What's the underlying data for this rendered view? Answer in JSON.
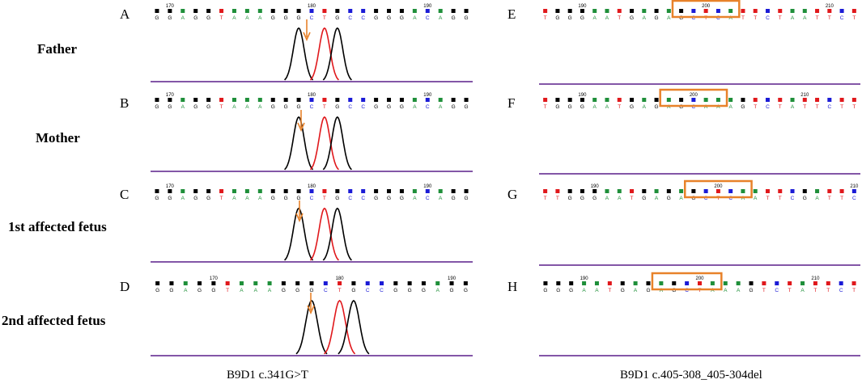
{
  "left_column": {
    "caption": "B9D1 c.341G>T",
    "panels": [
      {
        "letter": "A",
        "row_label": "Father",
        "seq": "GGAGGTAAAGGGCTGCCGGGACAGG",
        "pos_labels": [
          {
            "i": 1,
            "t": "170"
          },
          {
            "i": 12,
            "t": "180"
          },
          {
            "i": 21,
            "t": "190"
          }
        ]
      },
      {
        "letter": "B",
        "row_label": "Mother",
        "seq": "GGAGGTAAAGGGCTGCCGGGACAGG",
        "pos_labels": [
          {
            "i": 1,
            "t": "170"
          },
          {
            "i": 12,
            "t": "180"
          },
          {
            "i": 21,
            "t": "190"
          }
        ]
      },
      {
        "letter": "C",
        "row_label": "1st affected fetus",
        "seq": "GGAGGTAAAGGGCTGCCGGGACAGG",
        "pos_labels": [
          {
            "i": 1,
            "t": "170"
          },
          {
            "i": 12,
            "t": "180"
          },
          {
            "i": 21,
            "t": "190"
          }
        ]
      },
      {
        "letter": "D",
        "row_label": "2nd affected fetus",
        "seq": "GGAGGTAAAGGGCTGCCGGGAGG",
        "pos_labels": [
          {
            "i": 4,
            "t": "170"
          },
          {
            "i": 13,
            "t": "180"
          },
          {
            "i": 21,
            "t": "190"
          }
        ]
      }
    ]
  },
  "right_column": {
    "caption": "B9D1 c.405-308_405-304del",
    "panels": [
      {
        "letter": "E",
        "seq": "TGGGAATGAGAGCTCATTCTAATTCT",
        "pos_labels": [
          {
            "i": 3,
            "t": "190"
          },
          {
            "i": 13,
            "t": "200"
          },
          {
            "i": 23,
            "t": "210"
          }
        ]
      },
      {
        "letter": "F",
        "seq": "TGGGAATGAGAGCAAAGTCTATTCTT",
        "pos_labels": [
          {
            "i": 3,
            "t": "190"
          },
          {
            "i": 12,
            "t": "200"
          },
          {
            "i": 21,
            "t": "210"
          }
        ]
      },
      {
        "letter": "G",
        "seq": "TTGGGAATGAGAGCTCAATTCGATTC",
        "pos_labels": [
          {
            "i": 4,
            "t": "190"
          },
          {
            "i": 14,
            "t": "200"
          },
          {
            "i": 25,
            "t": "210"
          }
        ]
      },
      {
        "letter": "H",
        "seq": "GGGAATGAGAGCTAAAGTCTATTCT",
        "pos_labels": [
          {
            "i": 3,
            "t": "190"
          },
          {
            "i": 12,
            "t": "200"
          },
          {
            "i": 21,
            "t": "210"
          }
        ]
      }
    ]
  },
  "colors": {
    "A": "#1f8f3a",
    "C": "#1b1bd6",
    "G": "#000000",
    "T": "#e0181c",
    "marker": "#e8822a",
    "baseline": "#5a1f8a"
  }
}
